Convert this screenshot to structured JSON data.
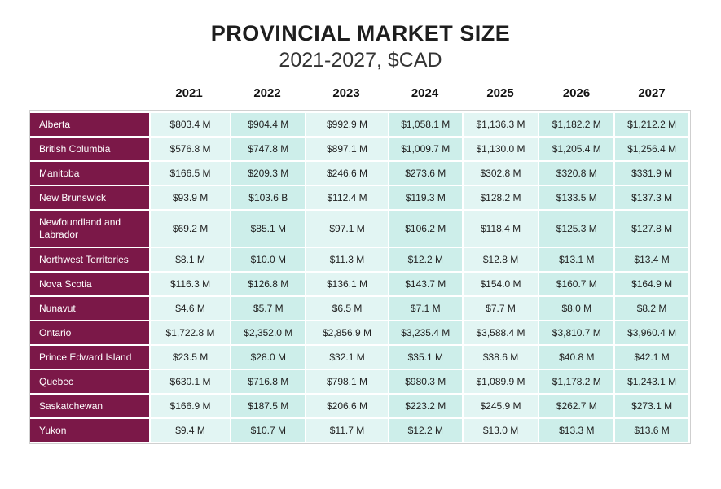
{
  "title": "PROVINCIAL MARKET SIZE",
  "subtitle": "2021-2027, $CAD",
  "colors": {
    "label_bg": "#7b1848",
    "cell_light": "#e2f5f3",
    "cell_dark": "#cdeeea"
  },
  "chart_data": {
    "type": "table",
    "columns": [
      "2021",
      "2022",
      "2023",
      "2024",
      "2025",
      "2026",
      "2027"
    ],
    "rows": [
      {
        "label": "Alberta",
        "values": [
          "$803.4 M",
          "$904.4 M",
          "$992.9 M",
          "$1,058.1 M",
          "$1,136.3 M",
          "$1,182.2 M",
          "$1,212.2 M"
        ]
      },
      {
        "label": "British Columbia",
        "values": [
          "$576.8 M",
          "$747.8 M",
          "$897.1 M",
          "$1,009.7 M",
          "$1,130.0 M",
          "$1,205.4 M",
          "$1,256.4 M"
        ]
      },
      {
        "label": "Manitoba",
        "values": [
          "$166.5 M",
          "$209.3 M",
          "$246.6 M",
          "$273.6 M",
          "$302.8 M",
          "$320.8 M",
          "$331.9 M"
        ]
      },
      {
        "label": "New Brunswick",
        "values": [
          "$93.9 M",
          "$103.6 B",
          "$112.4 M",
          "$119.3 M",
          "$128.2 M",
          "$133.5 M",
          "$137.3 M"
        ]
      },
      {
        "label": "Newfoundland and Labrador",
        "values": [
          "$69.2 M",
          "$85.1 M",
          "$97.1 M",
          "$106.2 M",
          "$118.4 M",
          "$125.3 M",
          "$127.8 M"
        ]
      },
      {
        "label": "Northwest Territories",
        "values": [
          "$8.1 M",
          "$10.0 M",
          "$11.3 M",
          "$12.2 M",
          "$12.8 M",
          "$13.1 M",
          "$13.4 M"
        ]
      },
      {
        "label": "Nova Scotia",
        "values": [
          "$116.3 M",
          "$126.8 M",
          "$136.1 M",
          "$143.7 M",
          "$154.0 M",
          "$160.7 M",
          "$164.9 M"
        ]
      },
      {
        "label": "Nunavut",
        "values": [
          "$4.6 M",
          "$5.7 M",
          "$6.5 M",
          "$7.1 M",
          "$7.7 M",
          "$8.0 M",
          "$8.2 M"
        ]
      },
      {
        "label": "Ontario",
        "values": [
          "$1,722.8 M",
          "$2,352.0 M",
          "$2,856.9 M",
          "$3,235.4 M",
          "$3,588.4 M",
          "$3,810.7 M",
          "$3,960.4 M"
        ]
      },
      {
        "label": "Prince Edward Island",
        "values": [
          "$23.5 M",
          "$28.0 M",
          "$32.1 M",
          "$35.1 M",
          "$38.6 M",
          "$40.8 M",
          "$42.1 M"
        ]
      },
      {
        "label": "Quebec",
        "values": [
          "$630.1 M",
          "$716.8 M",
          "$798.1 M",
          "$980.3 M",
          "$1,089.9 M",
          "$1,178.2 M",
          "$1,243.1 M"
        ]
      },
      {
        "label": "Saskatchewan",
        "values": [
          "$166.9 M",
          "$187.5 M",
          "$206.6 M",
          "$223.2 M",
          "$245.9 M",
          "$262.7 M",
          "$273.1 M"
        ]
      },
      {
        "label": "Yukon",
        "values": [
          "$9.4 M",
          "$10.7 M",
          "$11.7 M",
          "$12.2 M",
          "$13.0 M",
          "$13.3 M",
          "$13.6 M"
        ]
      }
    ]
  }
}
